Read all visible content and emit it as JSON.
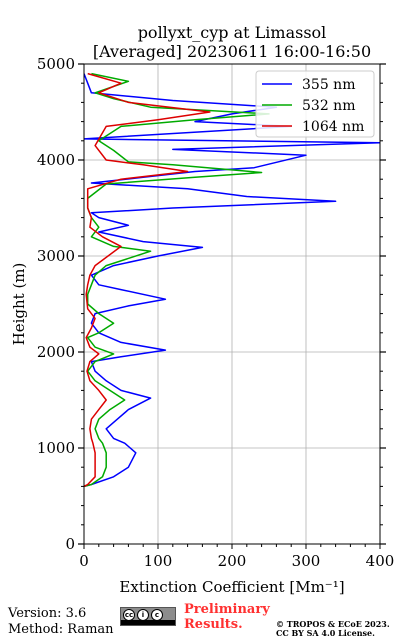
{
  "chart_data": {
    "type": "line",
    "title": "pollyxt_cyp at Limassol",
    "subtitle": "[Averaged] 20230611 16:00-16:50",
    "xlabel": "Extinction Coefficient [Mm⁻¹]",
    "ylabel": "Height (m)",
    "xlim": [
      0,
      400
    ],
    "ylim": [
      0,
      5000
    ],
    "xticks": [
      "0",
      "100",
      "200",
      "300",
      "400"
    ],
    "yticks": [
      "0",
      "1000",
      "2000",
      "3000",
      "4000",
      "5000"
    ],
    "grid": true,
    "legend_position": "top-right",
    "series": [
      {
        "name": "355 nm",
        "color": "#0000ff",
        "points": [
          [
            0,
            600
          ],
          [
            10,
            620
          ],
          [
            40,
            700
          ],
          [
            60,
            800
          ],
          [
            70,
            950
          ],
          [
            55,
            1050
          ],
          [
            40,
            1100
          ],
          [
            30,
            1200
          ],
          [
            45,
            1300
          ],
          [
            60,
            1400
          ],
          [
            90,
            1520
          ],
          [
            50,
            1600
          ],
          [
            30,
            1700
          ],
          [
            15,
            1800
          ],
          [
            10,
            1900
          ],
          [
            50,
            1950
          ],
          [
            110,
            2020
          ],
          [
            50,
            2100
          ],
          [
            20,
            2200
          ],
          [
            10,
            2300
          ],
          [
            15,
            2400
          ],
          [
            60,
            2480
          ],
          [
            110,
            2550
          ],
          [
            50,
            2650
          ],
          [
            20,
            2700
          ],
          [
            10,
            2800
          ],
          [
            40,
            2900
          ],
          [
            100,
            3000
          ],
          [
            160,
            3090
          ],
          [
            80,
            3150
          ],
          [
            20,
            3250
          ],
          [
            60,
            3320
          ],
          [
            20,
            3400
          ],
          [
            10,
            3450
          ],
          [
            120,
            3500
          ],
          [
            340,
            3570
          ],
          [
            220,
            3620
          ],
          [
            140,
            3700
          ],
          [
            10,
            3760
          ],
          [
            80,
            3820
          ],
          [
            150,
            3880
          ],
          [
            230,
            3920
          ],
          [
            300,
            4050
          ],
          [
            120,
            4110
          ],
          [
            400,
            4180
          ],
          [
            0,
            4220
          ],
          [
            280,
            4350
          ],
          [
            150,
            4400
          ],
          [
            200,
            4480
          ],
          [
            260,
            4550
          ],
          [
            120,
            4620
          ],
          [
            10,
            4700
          ],
          [
            5,
            4800
          ],
          [
            0,
            4900
          ]
        ]
      },
      {
        "name": "532 nm",
        "color": "#00aa00",
        "points": [
          [
            0,
            600
          ],
          [
            10,
            620
          ],
          [
            25,
            700
          ],
          [
            30,
            800
          ],
          [
            30,
            950
          ],
          [
            25,
            1050
          ],
          [
            20,
            1100
          ],
          [
            15,
            1200
          ],
          [
            20,
            1300
          ],
          [
            35,
            1400
          ],
          [
            55,
            1500
          ],
          [
            35,
            1600
          ],
          [
            15,
            1700
          ],
          [
            5,
            1800
          ],
          [
            15,
            1900
          ],
          [
            40,
            1980
          ],
          [
            15,
            2050
          ],
          [
            5,
            2150
          ],
          [
            20,
            2200
          ],
          [
            40,
            2300
          ],
          [
            20,
            2400
          ],
          [
            5,
            2500
          ],
          [
            5,
            2600
          ],
          [
            10,
            2700
          ],
          [
            15,
            2800
          ],
          [
            30,
            2900
          ],
          [
            90,
            3050
          ],
          [
            40,
            3100
          ],
          [
            10,
            3200
          ],
          [
            20,
            3300
          ],
          [
            10,
            3400
          ],
          [
            5,
            3500
          ],
          [
            5,
            3600
          ],
          [
            30,
            3750
          ],
          [
            150,
            3820
          ],
          [
            240,
            3870
          ],
          [
            120,
            3950
          ],
          [
            60,
            3980
          ],
          [
            40,
            4100
          ],
          [
            20,
            4200
          ],
          [
            50,
            4350
          ],
          [
            150,
            4420
          ],
          [
            250,
            4480
          ],
          [
            90,
            4550
          ],
          [
            40,
            4640
          ],
          [
            15,
            4700
          ],
          [
            60,
            4820
          ],
          [
            10,
            4900
          ]
        ]
      },
      {
        "name": "1064 nm",
        "color": "#dd0000",
        "points": [
          [
            0,
            600
          ],
          [
            5,
            620
          ],
          [
            15,
            700
          ],
          [
            15,
            800
          ],
          [
            15,
            950
          ],
          [
            12,
            1050
          ],
          [
            10,
            1100
          ],
          [
            8,
            1200
          ],
          [
            10,
            1300
          ],
          [
            20,
            1400
          ],
          [
            30,
            1500
          ],
          [
            20,
            1600
          ],
          [
            8,
            1700
          ],
          [
            4,
            1800
          ],
          [
            8,
            1900
          ],
          [
            20,
            1980
          ],
          [
            8,
            2050
          ],
          [
            3,
            2150
          ],
          [
            10,
            2250
          ],
          [
            15,
            2350
          ],
          [
            5,
            2450
          ],
          [
            3,
            2600
          ],
          [
            5,
            2700
          ],
          [
            8,
            2800
          ],
          [
            15,
            2900
          ],
          [
            50,
            3100
          ],
          [
            25,
            3200
          ],
          [
            8,
            3300
          ],
          [
            10,
            3400
          ],
          [
            5,
            3500
          ],
          [
            5,
            3700
          ],
          [
            50,
            3800
          ],
          [
            140,
            3880
          ],
          [
            80,
            3950
          ],
          [
            30,
            4000
          ],
          [
            15,
            4150
          ],
          [
            30,
            4350
          ],
          [
            100,
            4420
          ],
          [
            170,
            4500
          ],
          [
            60,
            4600
          ],
          [
            20,
            4700
          ],
          [
            50,
            4800
          ],
          [
            5,
            4900
          ]
        ]
      }
    ]
  },
  "footer": {
    "version": "Version: 3.6",
    "method": "Method: Raman",
    "preliminary_line1": "Preliminary",
    "preliminary_line2": "Results.",
    "copyright_line1": "© TROPOS & ECoE 2023.",
    "copyright_line2": "CC BY SA 4.0 License.",
    "cc_badge_text": "BY SA"
  }
}
